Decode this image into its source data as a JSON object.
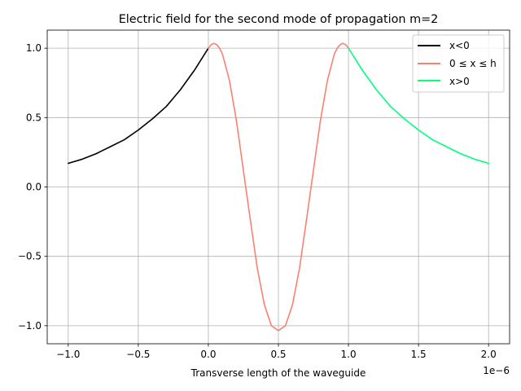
{
  "chart_data": {
    "type": "line",
    "title": "Electric field for the second mode of propagation m=2",
    "xlabel": "Transverse length of the waveguide",
    "ylabel": "",
    "x_offset_label": "1e−6",
    "xlim": [
      -1.15,
      2.15
    ],
    "ylim": [
      -1.13,
      1.13
    ],
    "xticks": [
      -1.0,
      -0.5,
      0.0,
      0.5,
      1.0,
      1.5,
      2.0
    ],
    "xtick_labels": [
      "−1.0",
      "−0.5",
      "0.0",
      "0.5",
      "1.0",
      "1.5",
      "2.0"
    ],
    "yticks": [
      -1.0,
      -0.5,
      0.0,
      0.5,
      1.0
    ],
    "ytick_labels": [
      "−1.0",
      "−0.5",
      "0.0",
      "0.5",
      "1.0"
    ],
    "grid": true,
    "legend_position": "top-right",
    "series": [
      {
        "name": "x<0",
        "color": "#000000",
        "x": [
          -1.0,
          -0.9,
          -0.8,
          -0.7,
          -0.6,
          -0.5,
          -0.4,
          -0.3,
          -0.2,
          -0.1,
          0.0
        ],
        "y": [
          0.17,
          0.2,
          0.24,
          0.29,
          0.34,
          0.41,
          0.49,
          0.58,
          0.7,
          0.84,
          1.0
        ]
      },
      {
        "name": "0 ≤ x ≤ h",
        "color": "#fa8072",
        "x": [
          0.0,
          0.02,
          0.04,
          0.06,
          0.08,
          0.1,
          0.15,
          0.2,
          0.25,
          0.3,
          0.35,
          0.4,
          0.45,
          0.5,
          0.55,
          0.6,
          0.65,
          0.7,
          0.75,
          0.8,
          0.85,
          0.9,
          0.92,
          0.94,
          0.96,
          0.98,
          1.0
        ],
        "y": [
          1.0,
          1.025,
          1.035,
          1.025,
          1.0,
          0.96,
          0.77,
          0.48,
          0.12,
          -0.24,
          -0.59,
          -0.85,
          -1.0,
          -1.035,
          -1.0,
          -0.85,
          -0.59,
          -0.24,
          0.12,
          0.48,
          0.77,
          0.96,
          1.0,
          1.025,
          1.035,
          1.025,
          1.0
        ]
      },
      {
        "name": "x>0",
        "color": "#00ff7f",
        "x": [
          1.0,
          1.1,
          1.2,
          1.3,
          1.4,
          1.5,
          1.6,
          1.7,
          1.8,
          1.9,
          2.0
        ],
        "y": [
          1.0,
          0.84,
          0.7,
          0.58,
          0.49,
          0.41,
          0.34,
          0.29,
          0.24,
          0.2,
          0.17
        ]
      }
    ]
  }
}
